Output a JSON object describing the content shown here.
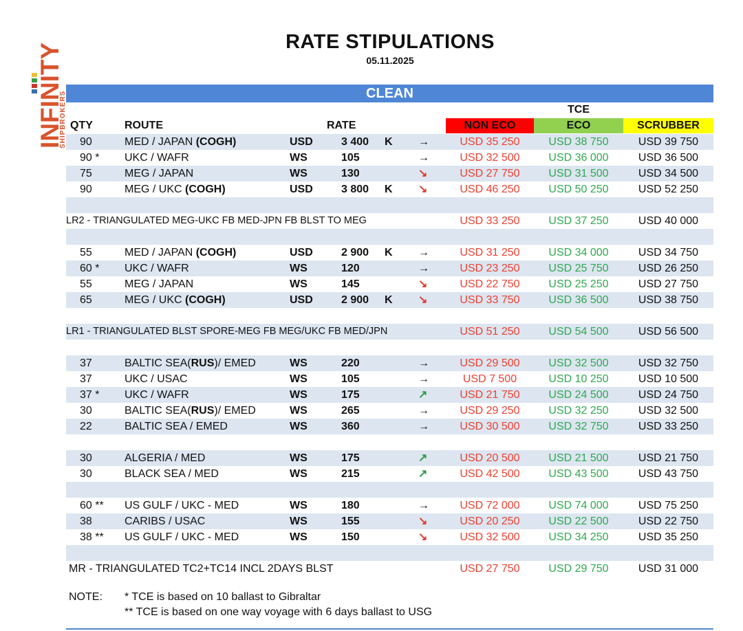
{
  "logo": {
    "name": "INFINITY",
    "sub": "SHIPBROKERS"
  },
  "title": "RATE STIPULATIONS",
  "date": "05.11.2025",
  "section": "CLEAN",
  "headers": {
    "qty": "QTY",
    "route": "ROUTE",
    "rate": "RATE",
    "tce": "TCE",
    "non_eco": "NON ECO",
    "eco": "ECO",
    "scrubber": "SCRUBBER"
  },
  "colors": {
    "non_eco_bg": "#ff0000",
    "eco_bg": "#92d050",
    "scrubber_bg": "#ffff00",
    "bar": "#4f86d6",
    "shade": "#dce5f0"
  },
  "rows": [
    {
      "type": "data",
      "shade": true,
      "qty": "90",
      "route": "MED / JAPAN ",
      "route_bold": "(COGH)",
      "cur": "USD",
      "rate": "3 400",
      "k": "K",
      "arrow": "right",
      "non": "USD 35 250",
      "eco": "USD 38 750",
      "scr": "USD 39 750"
    },
    {
      "type": "data",
      "shade": false,
      "qty": "90 *",
      "route": "UKC / WAFR",
      "route_bold": "",
      "cur": "WS",
      "rate": "105",
      "k": "",
      "arrow": "right",
      "non": "USD 32 500",
      "eco": "USD 36 000",
      "scr": "USD 36 500"
    },
    {
      "type": "data",
      "shade": true,
      "qty": "75",
      "route": "MEG / JAPAN",
      "route_bold": "",
      "cur": "WS",
      "rate": "130",
      "k": "",
      "arrow": "down",
      "non": "USD 27 750",
      "eco": "USD 31 500",
      "scr": "USD 34 500"
    },
    {
      "type": "data",
      "shade": false,
      "qty": "90",
      "route": "MEG / UKC ",
      "route_bold": "(COGH)",
      "cur": "USD",
      "rate": "3 800",
      "k": "K",
      "arrow": "down",
      "non": "USD 46 250",
      "eco": "USD 50 250",
      "scr": "USD 52 250"
    },
    {
      "type": "blank",
      "shade": true
    },
    {
      "type": "tri",
      "shade": false,
      "label": "LR2 - TRIANGULATED MEG-UKC FB MED-JPN FB BLST TO MEG",
      "non": "USD 33 250",
      "eco": "USD 37 250",
      "scr": "USD 40 000"
    },
    {
      "type": "blank",
      "shade": true
    },
    {
      "type": "data",
      "shade": false,
      "qty": "55",
      "route": "MED / JAPAN ",
      "route_bold": "(COGH)",
      "cur": "USD",
      "rate": "2 900",
      "k": "K",
      "arrow": "right",
      "non": "USD 31 250",
      "eco": "USD 34 000",
      "scr": "USD 34 750"
    },
    {
      "type": "data",
      "shade": true,
      "qty": "60 *",
      "route": "UKC / WAFR",
      "route_bold": "",
      "cur": "WS",
      "rate": "120",
      "k": "",
      "arrow": "right",
      "non": "USD 23 250",
      "eco": "USD 25 750",
      "scr": "USD 26 250"
    },
    {
      "type": "data",
      "shade": false,
      "qty": "55",
      "route": "MEG / JAPAN",
      "route_bold": "",
      "cur": "WS",
      "rate": "145",
      "k": "",
      "arrow": "down",
      "non": "USD 22 750",
      "eco": "USD 25 250",
      "scr": "USD 27 750"
    },
    {
      "type": "data",
      "shade": true,
      "qty": "65",
      "route": "MEG / UKC ",
      "route_bold": "(COGH)",
      "cur": "USD",
      "rate": "2 900",
      "k": "K",
      "arrow": "down",
      "non": "USD 33 750",
      "eco": "USD 36 500",
      "scr": "USD 38 750"
    },
    {
      "type": "blank",
      "shade": false
    },
    {
      "type": "tri",
      "shade": true,
      "label": "LR1 - TRIANGULATED BLST SPORE-MEG FB MEG/UKC FB MED/JPN",
      "non": "USD 51 250",
      "eco": "USD 54 500",
      "scr": "USD 56 500"
    },
    {
      "type": "blank",
      "shade": false
    },
    {
      "type": "data",
      "shade": true,
      "qty": "37",
      "route": "BALTIC SEA(",
      "route_bold": "RUS",
      "route_after": ")/ EMED",
      "cur": "WS",
      "rate": "220",
      "k": "",
      "arrow": "right",
      "non": "USD 29 500",
      "eco": "USD 32 500",
      "scr": "USD 32 750"
    },
    {
      "type": "data",
      "shade": false,
      "qty": "37",
      "route": "UKC / USAC",
      "route_bold": "",
      "cur": "WS",
      "rate": "105",
      "k": "",
      "arrow": "right",
      "non": "USD 7 500",
      "eco": "USD 10 250",
      "scr": "USD 10 500"
    },
    {
      "type": "data",
      "shade": true,
      "qty": "37 *",
      "route": "UKC / WAFR",
      "route_bold": "",
      "cur": "WS",
      "rate": "175",
      "k": "",
      "arrow": "up",
      "non": "USD 21 750",
      "eco": "USD 24 500",
      "scr": "USD 24 750"
    },
    {
      "type": "data",
      "shade": false,
      "qty": "30",
      "route": "BALTIC SEA(",
      "route_bold": "RUS",
      "route_after": ")/ EMED",
      "cur": "WS",
      "rate": "265",
      "k": "",
      "arrow": "right",
      "non": "USD 29 250",
      "eco": "USD 32 250",
      "scr": "USD 32 500"
    },
    {
      "type": "data",
      "shade": true,
      "qty": "22",
      "route": "BALTIC SEA / EMED",
      "route_bold": "",
      "cur": "WS",
      "rate": "360",
      "k": "",
      "arrow": "right",
      "non": "USD 30 500",
      "eco": "USD 32 750",
      "scr": "USD 33 250"
    },
    {
      "type": "blank",
      "shade": false
    },
    {
      "type": "data",
      "shade": true,
      "qty": "30",
      "route": "ALGERIA / MED",
      "route_bold": "",
      "cur": "WS",
      "rate": "175",
      "k": "",
      "arrow": "up",
      "non": "USD 20 500",
      "eco": "USD 21 500",
      "scr": "USD 21 750"
    },
    {
      "type": "data",
      "shade": false,
      "qty": "30",
      "route": "BLACK SEA / MED",
      "route_bold": "",
      "cur": "WS",
      "rate": "215",
      "k": "",
      "arrow": "up",
      "non": "USD 42 500",
      "eco": "USD 43 500",
      "scr": "USD 43 750"
    },
    {
      "type": "blank",
      "shade": true
    },
    {
      "type": "data",
      "shade": false,
      "qty": "60 **",
      "route": "US GULF / UKC - MED",
      "route_bold": "",
      "cur": "WS",
      "rate": "180",
      "k": "",
      "arrow": "right",
      "non": "USD 72 000",
      "eco": "USD 74 000",
      "scr": "USD 75 250"
    },
    {
      "type": "data",
      "shade": true,
      "qty": "38",
      "route": "CARIBS / USAC",
      "route_bold": "",
      "cur": "WS",
      "rate": "155",
      "k": "",
      "arrow": "down",
      "non": "USD 20 250",
      "eco": "USD 22 500",
      "scr": "USD 22 750"
    },
    {
      "type": "data",
      "shade": false,
      "qty": "38 **",
      "route": "US GULF / UKC - MED",
      "route_bold": "",
      "cur": "WS",
      "rate": "150",
      "k": "",
      "arrow": "down",
      "non": "USD 32 500",
      "eco": "USD 34 250",
      "scr": "USD 35 250"
    },
    {
      "type": "blank",
      "shade": true
    },
    {
      "type": "tri",
      "shade": false,
      "mr": true,
      "label": "MR - TRIANGULATED TC2+TC14 INCL 2DAYS BLST",
      "non": "USD 27 750",
      "eco": "USD 29 750",
      "scr": "USD 31 000"
    }
  ],
  "notes": {
    "label": "NOTE:",
    "line1": "*  TCE is based on 10 ballast to Gibraltar",
    "line2": "** TCE is based on one way voyage with 6 days ballast to USG"
  }
}
